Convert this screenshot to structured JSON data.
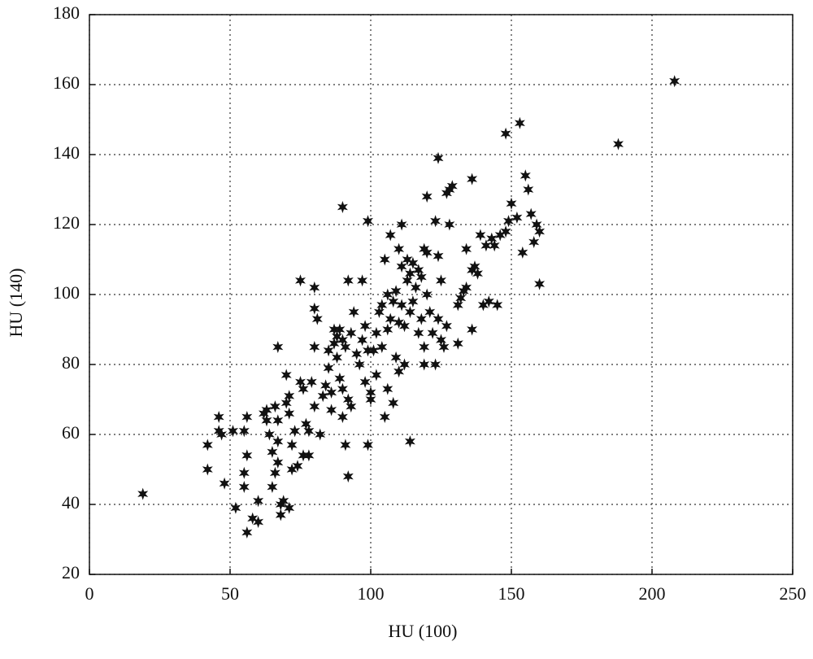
{
  "chart_data": {
    "type": "scatter",
    "x_label": "HU (100)",
    "y_label": "HU (140)",
    "xlim": [
      0,
      250
    ],
    "xticks": [
      0,
      50,
      100,
      150,
      200,
      250
    ],
    "ylim": [
      20,
      180
    ],
    "yticks": [
      20,
      40,
      60,
      80,
      100,
      120,
      140,
      160,
      180
    ],
    "grid": true,
    "color": "#111111",
    "marker": "star",
    "x": [
      19,
      42,
      42,
      46,
      46,
      47,
      48,
      51,
      52,
      55,
      55,
      55,
      56,
      56,
      56,
      58,
      60,
      60,
      62,
      63,
      63,
      64,
      65,
      65,
      66,
      66,
      67,
      67,
      67,
      67,
      68,
      68,
      69,
      70,
      70,
      71,
      71,
      71,
      72,
      72,
      73,
      74,
      75,
      75,
      76,
      76,
      77,
      78,
      78,
      79,
      80,
      80,
      80,
      80,
      81,
      82,
      83,
      84,
      85,
      85,
      86,
      86,
      87,
      87,
      88,
      88,
      89,
      89,
      90,
      90,
      90,
      90,
      91,
      91,
      92,
      92,
      92,
      93,
      93,
      94,
      95,
      96,
      97,
      97,
      98,
      98,
      99,
      99,
      100,
      99,
      100,
      101,
      102,
      102,
      103,
      104,
      104,
      105,
      105,
      106,
      106,
      106,
      107,
      107,
      108,
      108,
      109,
      109,
      110,
      110,
      110,
      111,
      111,
      111,
      112,
      112,
      113,
      113,
      114,
      114,
      114,
      115,
      115,
      116,
      117,
      117,
      118,
      118,
      119,
      119,
      119,
      120,
      120,
      120,
      121,
      122,
      123,
      123,
      124,
      124,
      124,
      125,
      125,
      126,
      127,
      127,
      128,
      128,
      129,
      131,
      131,
      132,
      133,
      134,
      134,
      136,
      136,
      136,
      137,
      138,
      139,
      140,
      141,
      142,
      143,
      144,
      145,
      146,
      148,
      148,
      149,
      150,
      152,
      153,
      154,
      155,
      156,
      157,
      158,
      159,
      160,
      160,
      188,
      208
    ],
    "values": [
      43,
      57,
      50,
      65,
      61,
      60,
      46,
      61,
      39,
      49,
      45,
      61,
      65,
      54,
      32,
      36,
      35,
      41,
      66,
      64,
      67,
      60,
      55,
      45,
      49,
      68,
      52,
      58,
      64,
      85,
      37,
      40,
      41,
      69,
      77,
      71,
      66,
      39,
      50,
      57,
      61,
      51,
      104,
      75,
      73,
      54,
      63,
      61,
      54,
      75,
      68,
      85,
      96,
      102,
      93,
      60,
      71,
      74,
      79,
      84,
      72,
      67,
      90,
      86,
      88,
      82,
      90,
      76,
      125,
      87,
      65,
      73,
      85,
      57,
      48,
      104,
      70,
      68,
      89,
      95,
      83,
      80,
      104,
      87,
      75,
      91,
      121,
      84,
      70,
      57,
      72,
      84,
      77,
      89,
      95,
      97,
      85,
      110,
      65,
      73,
      90,
      100,
      117,
      93,
      69,
      98,
      82,
      101,
      78,
      113,
      92,
      97,
      120,
      108,
      91,
      80,
      104,
      110,
      106,
      95,
      58,
      98,
      109,
      102,
      107,
      89,
      93,
      105,
      113,
      85,
      80,
      100,
      112,
      128,
      95,
      89,
      121,
      80,
      139,
      111,
      93,
      104,
      87,
      85,
      91,
      129,
      130,
      120,
      131,
      97,
      86,
      99,
      101,
      102,
      113,
      107,
      133,
      90,
      108,
      106,
      117,
      97,
      114,
      98,
      116,
      114,
      97,
      117,
      146,
      118,
      121,
      126,
      122,
      149,
      112,
      134,
      130,
      123,
      115,
      120,
      118,
      103,
      143,
      161
    ]
  }
}
